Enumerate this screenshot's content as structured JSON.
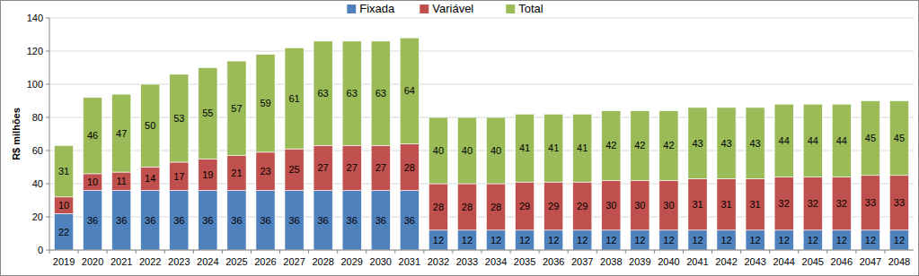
{
  "chart_data": {
    "type": "bar",
    "stacked": true,
    "data_labels": true,
    "grid": true,
    "legend": "top",
    "y_label": "R$ milhões",
    "categories": [
      "2019",
      "2020",
      "2021",
      "2022",
      "2023",
      "2024",
      "2025",
      "2026",
      "2027",
      "2028",
      "2029",
      "2030",
      "2031",
      "2032",
      "2033",
      "2034",
      "2035",
      "2036",
      "2037",
      "2038",
      "2039",
      "2040",
      "2041",
      "2042",
      "2043",
      "2044",
      "2045",
      "2046",
      "2047",
      "2048"
    ],
    "ylim": [
      0,
      140
    ],
    "yticks": [
      0,
      20,
      40,
      60,
      80,
      100,
      120,
      140
    ],
    "series": [
      {
        "name": "Fixada",
        "color": "#4f81bd",
        "values": [
          22,
          36,
          36,
          36,
          36,
          36,
          36,
          36,
          36,
          36,
          36,
          36,
          36,
          12,
          12,
          12,
          12,
          12,
          12,
          12,
          12,
          12,
          12,
          12,
          12,
          12,
          12,
          12,
          12,
          12
        ]
      },
      {
        "name": "Variável",
        "color": "#c0504d",
        "values": [
          10,
          10,
          11,
          14,
          17,
          19,
          21,
          23,
          25,
          27,
          27,
          27,
          28,
          28,
          28,
          28,
          29,
          29,
          29,
          30,
          30,
          30,
          31,
          31,
          31,
          32,
          32,
          32,
          33,
          33
        ]
      },
      {
        "name": "Total",
        "color": "#9bbb59",
        "values": [
          31,
          46,
          47,
          50,
          53,
          55,
          57,
          59,
          61,
          63,
          63,
          63,
          64,
          40,
          40,
          40,
          41,
          41,
          41,
          42,
          42,
          42,
          43,
          43,
          43,
          44,
          44,
          44,
          45,
          45
        ]
      }
    ]
  }
}
